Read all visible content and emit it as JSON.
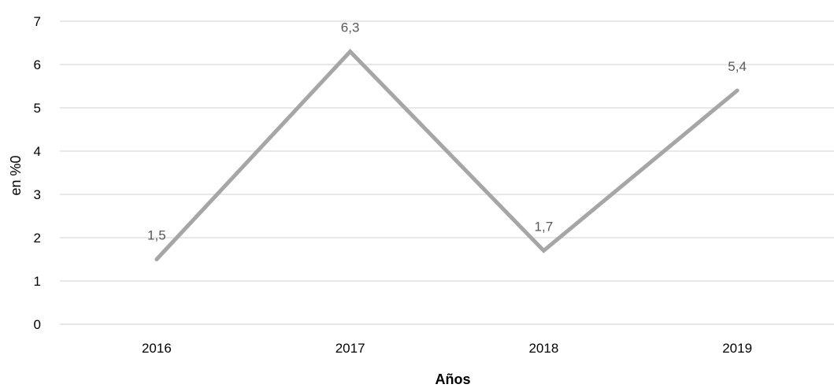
{
  "chart_data": {
    "type": "line",
    "categories": [
      "2016",
      "2017",
      "2018",
      "2019"
    ],
    "series": [
      {
        "values": [
          1.5,
          6.3,
          1.7,
          5.4
        ],
        "color": "#a6a6a6"
      }
    ],
    "data_labels": [
      "1,5",
      "6,3",
      "1,7",
      "5,4"
    ],
    "xlabel": "Años",
    "ylabel": "en %0",
    "ylim": [
      0,
      7
    ],
    "yticks": [
      "0",
      "1",
      "2",
      "3",
      "4",
      "5",
      "6",
      "7"
    ],
    "grid": true,
    "gridColor": "#d9d9d9",
    "legend": "none"
  }
}
